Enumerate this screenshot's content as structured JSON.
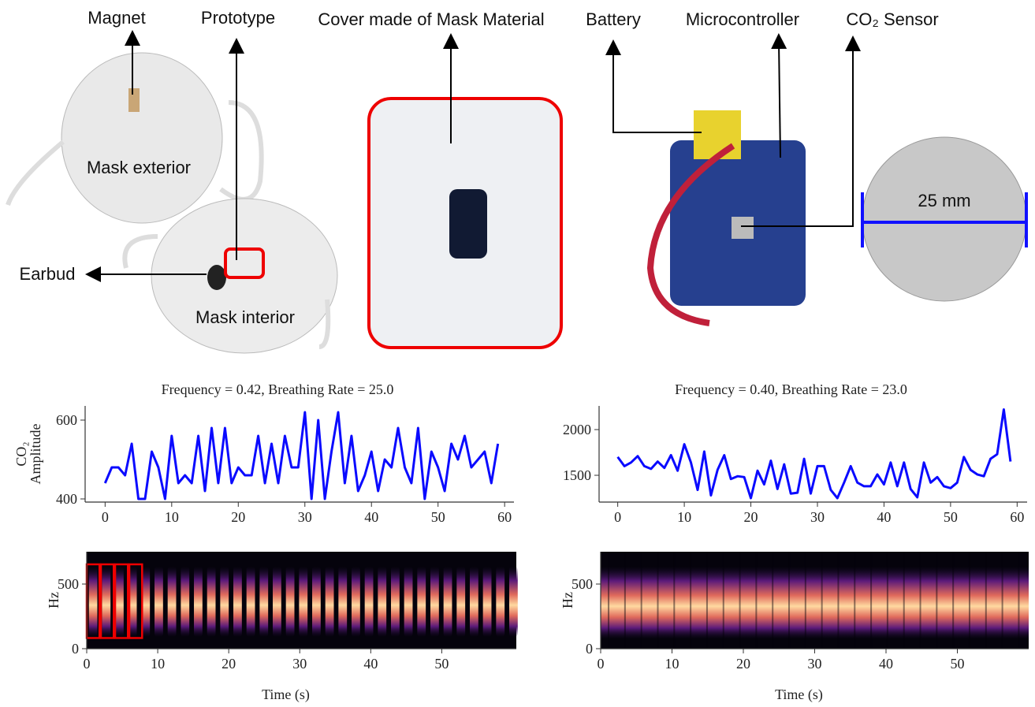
{
  "labels": {
    "magnet": "Magnet",
    "prototype": "Prototype",
    "cover": "Cover made of Mask Material",
    "battery": "Battery",
    "microcontroller": "Microcontroller",
    "co2_sensor": "CO₂ Sensor",
    "mask_exterior": "Mask exterior",
    "earbud": "Earbud",
    "mask_interior": "Mask interior",
    "coin": "25 mm"
  },
  "chart_data": [
    {
      "type": "line",
      "title": "Frequency = 0.42, Breathing Rate = 25.0",
      "ylabel": [
        "CO₂",
        "Amplitude"
      ],
      "x": [
        0,
        1,
        2,
        3,
        4,
        5,
        6,
        7,
        8,
        9,
        10,
        11,
        12,
        13,
        14,
        15,
        16,
        17,
        18,
        19,
        20,
        21,
        22,
        23,
        24,
        25,
        26,
        27,
        28,
        29,
        30,
        31,
        32,
        33,
        34,
        35,
        36,
        37,
        38,
        39,
        40,
        41,
        42,
        43,
        44,
        45,
        46,
        47,
        48,
        49,
        50,
        51,
        52,
        53,
        54,
        55,
        56,
        57,
        58,
        59
      ],
      "series": [
        {
          "color": "#0a0aff",
          "values": [
            440,
            480,
            480,
            460,
            540,
            400,
            400,
            520,
            480,
            400,
            560,
            440,
            460,
            440,
            560,
            420,
            580,
            440,
            580,
            440,
            480,
            460,
            460,
            560,
            440,
            540,
            440,
            560,
            480,
            480,
            620,
            400,
            600,
            400,
            520,
            620,
            440,
            560,
            420,
            460,
            520,
            420,
            500,
            480,
            580,
            480,
            440,
            580,
            400,
            520,
            480,
            420,
            540,
            500,
            560,
            480,
            500,
            520,
            440,
            540
          ]
        }
      ],
      "xlim": [
        -3,
        61.4
      ],
      "xticks": [
        0,
        10,
        20,
        30,
        40,
        50,
        60
      ],
      "ylim": [
        392,
        636
      ],
      "yticks": [
        400,
        600
      ]
    },
    {
      "type": "line",
      "title": "Frequency = 0.40, Breathing Rate = 23.0",
      "x": [
        0,
        1,
        2,
        3,
        4,
        5,
        6,
        7,
        8,
        9,
        10,
        11,
        12,
        13,
        14,
        15,
        16,
        17,
        18,
        19,
        20,
        21,
        22,
        23,
        24,
        25,
        26,
        27,
        28,
        29,
        30,
        31,
        32,
        33,
        34,
        35,
        36,
        37,
        38,
        39,
        40,
        41,
        42,
        43,
        44,
        45,
        46,
        47,
        48,
        49,
        50,
        51,
        52,
        53,
        54,
        55,
        56,
        57,
        58,
        59
      ],
      "series": [
        {
          "color": "#0a0aff",
          "values": [
            1700,
            1600,
            1640,
            1710,
            1600,
            1570,
            1650,
            1580,
            1720,
            1550,
            1840,
            1640,
            1340,
            1760,
            1280,
            1560,
            1720,
            1460,
            1490,
            1480,
            1250,
            1550,
            1400,
            1660,
            1350,
            1620,
            1300,
            1310,
            1680,
            1300,
            1600,
            1600,
            1340,
            1250,
            1420,
            1600,
            1420,
            1380,
            1380,
            1510,
            1400,
            1640,
            1380,
            1640,
            1350,
            1260,
            1640,
            1420,
            1480,
            1380,
            1360,
            1420,
            1700,
            1560,
            1510,
            1490,
            1680,
            1730,
            2220,
            1650
          ]
        }
      ],
      "xlim": [
        -2.8,
        61.5
      ],
      "xticks": [
        0,
        10,
        20,
        30,
        40,
        50,
        60
      ],
      "ylim": [
        1207,
        2259
      ],
      "yticks": [
        1500,
        2000
      ]
    },
    {
      "type": "spectrogram",
      "ylabel": "Hz",
      "xlabel": "Time (s)",
      "xlim": [
        0,
        60.5
      ],
      "xticks": [
        0,
        10,
        20,
        30,
        40,
        50
      ],
      "ylim": [
        0,
        750
      ],
      "yticks": [
        0,
        500
      ]
    },
    {
      "type": "spectrogram",
      "ylabel": "Hz",
      "xlabel": "Time (s)",
      "xlim": [
        0,
        60
      ],
      "xticks": [
        0,
        10,
        20,
        30,
        40,
        50
      ],
      "ylim": [
        0,
        750
      ],
      "yticks": [
        0,
        500
      ]
    }
  ]
}
